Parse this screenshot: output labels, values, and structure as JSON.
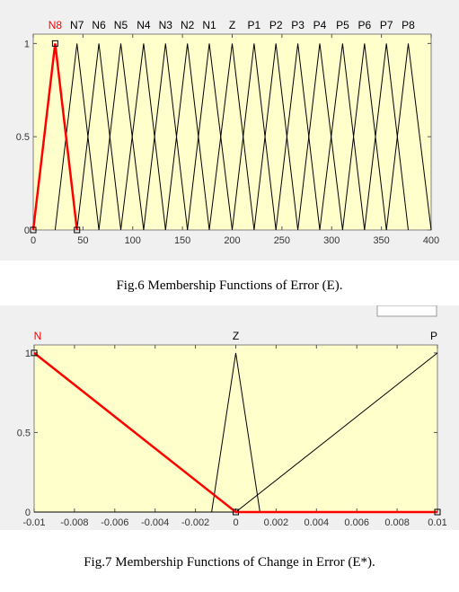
{
  "figures": {
    "fig6_caption": "Fig.6 Membership Functions of Error (E).",
    "fig7_caption": "Fig.7 Membership Functions of Change in Error (E*)."
  },
  "colors": {
    "plot_bg": "#ffffcc",
    "highlight": "#ff0000",
    "line": "#000000",
    "window_bg": "#f0f0f0"
  },
  "chart_data": [
    {
      "type": "line",
      "xlim": [
        0,
        400
      ],
      "ylim": [
        0,
        1.05
      ],
      "xticks": [
        "0",
        "50",
        "100",
        "150",
        "200",
        "250",
        "300",
        "350",
        "400"
      ],
      "xtick_values": [
        0,
        50,
        100,
        150,
        200,
        250,
        300,
        350,
        400
      ],
      "yticks": [
        "0",
        "0.5",
        "1"
      ],
      "ytick_values": [
        0,
        0.5,
        1
      ],
      "highlighted": "N8",
      "series": [
        {
          "name": "N8",
          "points": [
            [
              0,
              0
            ],
            [
              22,
              1
            ],
            [
              44,
              0
            ]
          ]
        },
        {
          "name": "N7",
          "points": [
            [
              22,
              0
            ],
            [
              44,
              1
            ],
            [
              66,
              0
            ]
          ]
        },
        {
          "name": "N6",
          "points": [
            [
              44,
              0
            ],
            [
              66,
              1
            ],
            [
              88,
              0
            ]
          ]
        },
        {
          "name": "N5",
          "points": [
            [
              66,
              0
            ],
            [
              88,
              1
            ],
            [
              111,
              0
            ]
          ]
        },
        {
          "name": "N4",
          "points": [
            [
              88,
              0
            ],
            [
              111,
              1
            ],
            [
              133,
              0
            ]
          ]
        },
        {
          "name": "N3",
          "points": [
            [
              111,
              0
            ],
            [
              133,
              1
            ],
            [
              155,
              0
            ]
          ]
        },
        {
          "name": "N2",
          "points": [
            [
              133,
              0
            ],
            [
              155,
              1
            ],
            [
              177,
              0
            ]
          ]
        },
        {
          "name": "N1",
          "points": [
            [
              155,
              0
            ],
            [
              177,
              1
            ],
            [
              200,
              0
            ]
          ]
        },
        {
          "name": "Z",
          "points": [
            [
              177,
              0
            ],
            [
              200,
              1
            ],
            [
              222,
              0
            ]
          ]
        },
        {
          "name": "P1",
          "points": [
            [
              200,
              0
            ],
            [
              222,
              1
            ],
            [
              244,
              0
            ]
          ]
        },
        {
          "name": "P2",
          "points": [
            [
              222,
              0
            ],
            [
              244,
              1
            ],
            [
              266,
              0
            ]
          ]
        },
        {
          "name": "P3",
          "points": [
            [
              244,
              0
            ],
            [
              266,
              1
            ],
            [
              288,
              0
            ]
          ]
        },
        {
          "name": "P4",
          "points": [
            [
              266,
              0
            ],
            [
              288,
              1
            ],
            [
              311,
              0
            ]
          ]
        },
        {
          "name": "P5",
          "points": [
            [
              288,
              0
            ],
            [
              311,
              1
            ],
            [
              333,
              0
            ]
          ]
        },
        {
          "name": "P6",
          "points": [
            [
              311,
              0
            ],
            [
              333,
              1
            ],
            [
              355,
              0
            ]
          ]
        },
        {
          "name": "P7",
          "points": [
            [
              333,
              0
            ],
            [
              355,
              1
            ],
            [
              377,
              0
            ]
          ]
        },
        {
          "name": "P8",
          "points": [
            [
              355,
              0
            ],
            [
              377,
              1
            ],
            [
              400,
              0
            ]
          ]
        }
      ]
    },
    {
      "type": "line",
      "xlim": [
        -0.01,
        0.01
      ],
      "ylim": [
        0,
        1.05
      ],
      "xticks": [
        "-0.01",
        "-0.008",
        "-0.006",
        "-0.004",
        "-0.002",
        "0",
        "0.002",
        "0.004",
        "0.006",
        "0.008",
        "0.01"
      ],
      "xtick_values": [
        -0.01,
        -0.008,
        -0.006,
        -0.004,
        -0.002,
        0,
        0.002,
        0.004,
        0.006,
        0.008,
        0.01
      ],
      "yticks": [
        "0",
        "0.5",
        "1"
      ],
      "ytick_values": [
        0,
        0.5,
        1
      ],
      "highlighted": "N",
      "series": [
        {
          "name": "N",
          "points": [
            [
              -0.01,
              1
            ],
            [
              0,
              0
            ],
            [
              0.01,
              0
            ]
          ]
        },
        {
          "name": "Z",
          "points": [
            [
              -0.0012,
              0
            ],
            [
              0,
              1
            ],
            [
              0.0012,
              0
            ]
          ]
        },
        {
          "name": "P",
          "points": [
            [
              -0.01,
              0
            ],
            [
              0,
              0
            ],
            [
              0.01,
              1
            ]
          ]
        }
      ]
    }
  ]
}
